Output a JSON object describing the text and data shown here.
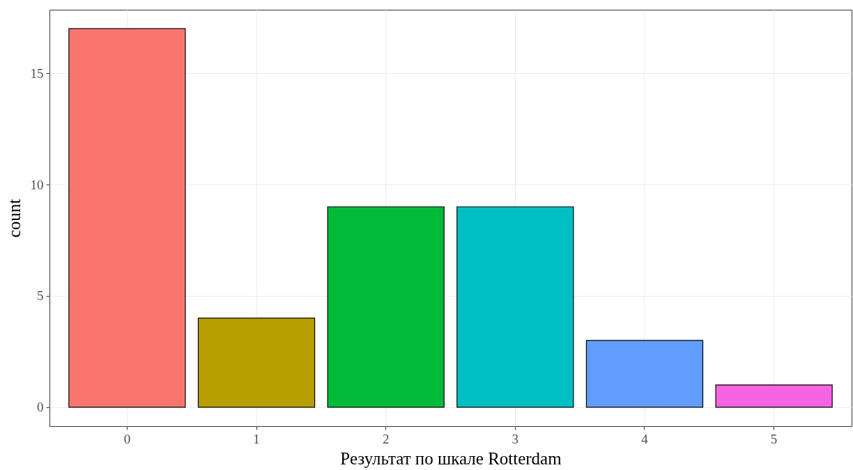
{
  "chart_data": {
    "type": "bar",
    "xlabel": "Результат по шкале Rotterdam",
    "ylabel": "count",
    "categories": [
      "0",
      "1",
      "2",
      "3",
      "4",
      "5"
    ],
    "values": [
      17,
      4,
      9,
      9,
      3,
      1
    ],
    "colors": [
      "#f8766d",
      "#b79f00",
      "#00ba38",
      "#00bfc4",
      "#619cff",
      "#f564e3"
    ],
    "ylim": [
      -0.85,
      17.85
    ],
    "yticks": [
      0,
      5,
      10,
      15
    ],
    "grid": true,
    "legend": false
  }
}
